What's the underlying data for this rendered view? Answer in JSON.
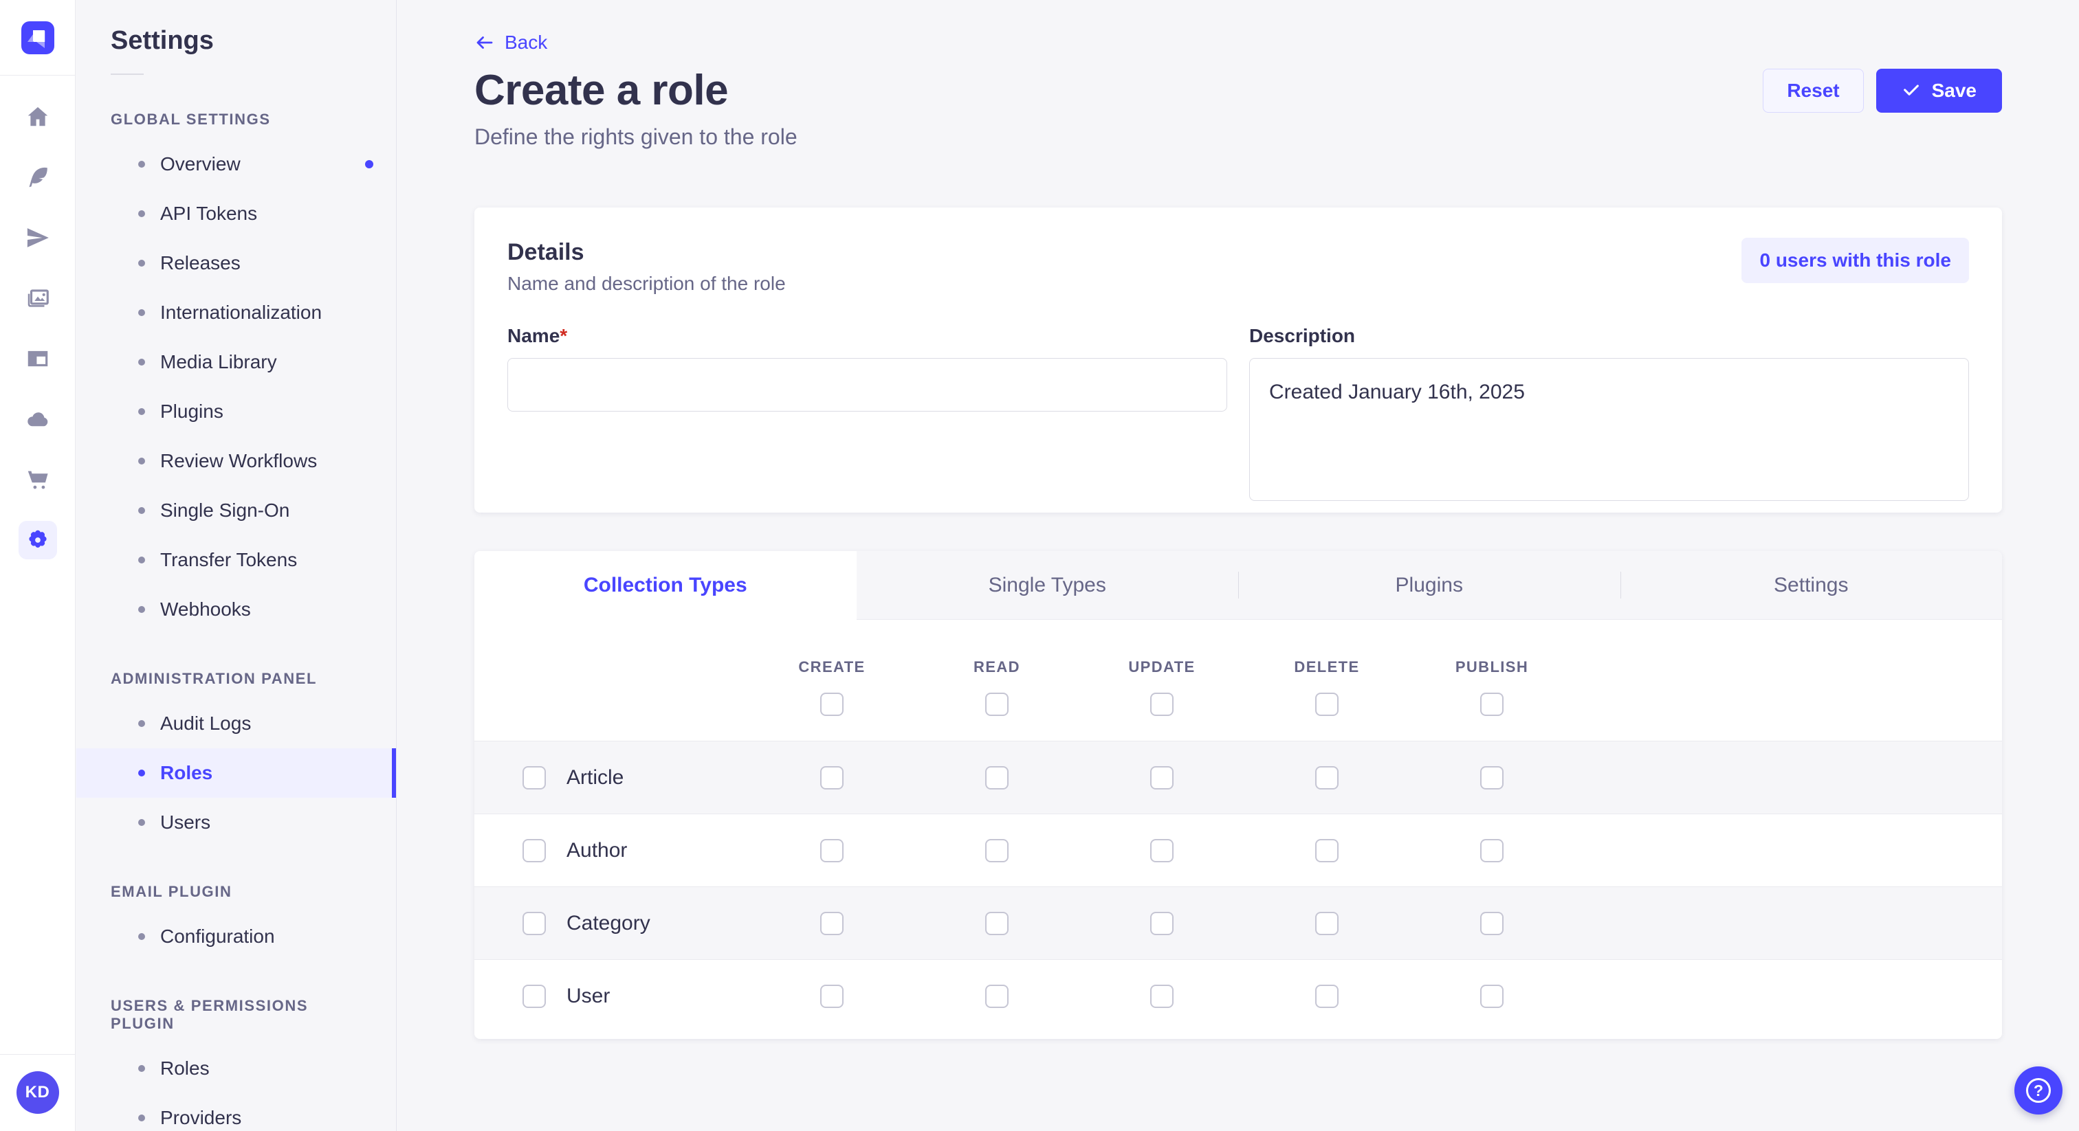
{
  "colors": {
    "primary": "#4945ff",
    "primary_light": "#f0f0ff",
    "background": "#f6f6f9",
    "surface": "#ffffff",
    "text": "#32324d",
    "muted": "#666687",
    "required": "#d02b20"
  },
  "rail": {
    "icons": [
      "home",
      "feather",
      "paper-plane",
      "media-library",
      "layout",
      "cloud",
      "marketplace-cart",
      "settings-gear"
    ],
    "active_icon": "settings-gear",
    "avatar_initials": "KD"
  },
  "sidebar": {
    "title": "Settings",
    "sections": [
      {
        "label": "GLOBAL SETTINGS",
        "items": [
          {
            "label": "Overview",
            "notification": true
          },
          {
            "label": "API Tokens"
          },
          {
            "label": "Releases"
          },
          {
            "label": "Internationalization"
          },
          {
            "label": "Media Library"
          },
          {
            "label": "Plugins"
          },
          {
            "label": "Review Workflows"
          },
          {
            "label": "Single Sign-On"
          },
          {
            "label": "Transfer Tokens"
          },
          {
            "label": "Webhooks"
          }
        ]
      },
      {
        "label": "ADMINISTRATION PANEL",
        "items": [
          {
            "label": "Audit Logs"
          },
          {
            "label": "Roles",
            "active": true
          },
          {
            "label": "Users"
          }
        ]
      },
      {
        "label": "EMAIL PLUGIN",
        "items": [
          {
            "label": "Configuration"
          }
        ]
      },
      {
        "label": "USERS & PERMISSIONS PLUGIN",
        "items": [
          {
            "label": "Roles"
          },
          {
            "label": "Providers"
          }
        ]
      }
    ]
  },
  "header": {
    "back_label": "Back",
    "title": "Create a role",
    "subtitle": "Define the rights given to the role",
    "reset_label": "Reset",
    "save_label": "Save"
  },
  "details": {
    "title": "Details",
    "subtitle": "Name and description of the role",
    "users_badge": "0 users with this role",
    "name_label": "Name",
    "required_mark": "*",
    "name_value": "",
    "description_label": "Description",
    "description_value": "Created January 16th, 2025"
  },
  "permissions": {
    "tabs": [
      {
        "label": "Collection Types",
        "active": true
      },
      {
        "label": "Single Types"
      },
      {
        "label": "Plugins"
      },
      {
        "label": "Settings"
      }
    ],
    "columns": [
      "CREATE",
      "READ",
      "UPDATE",
      "DELETE",
      "PUBLISH"
    ],
    "header_checked": [
      false,
      false,
      false,
      false,
      false
    ],
    "rows": [
      {
        "label": "Article",
        "checked": false,
        "permissions": [
          false,
          false,
          false,
          false,
          false
        ]
      },
      {
        "label": "Author",
        "checked": false,
        "permissions": [
          false,
          false,
          false,
          false,
          false
        ]
      },
      {
        "label": "Category",
        "checked": false,
        "permissions": [
          false,
          false,
          false,
          false,
          false
        ]
      },
      {
        "label": "User",
        "checked": false,
        "permissions": [
          false,
          false,
          false,
          false,
          false
        ]
      }
    ]
  },
  "help": {
    "icon": "question-mark-icon"
  }
}
